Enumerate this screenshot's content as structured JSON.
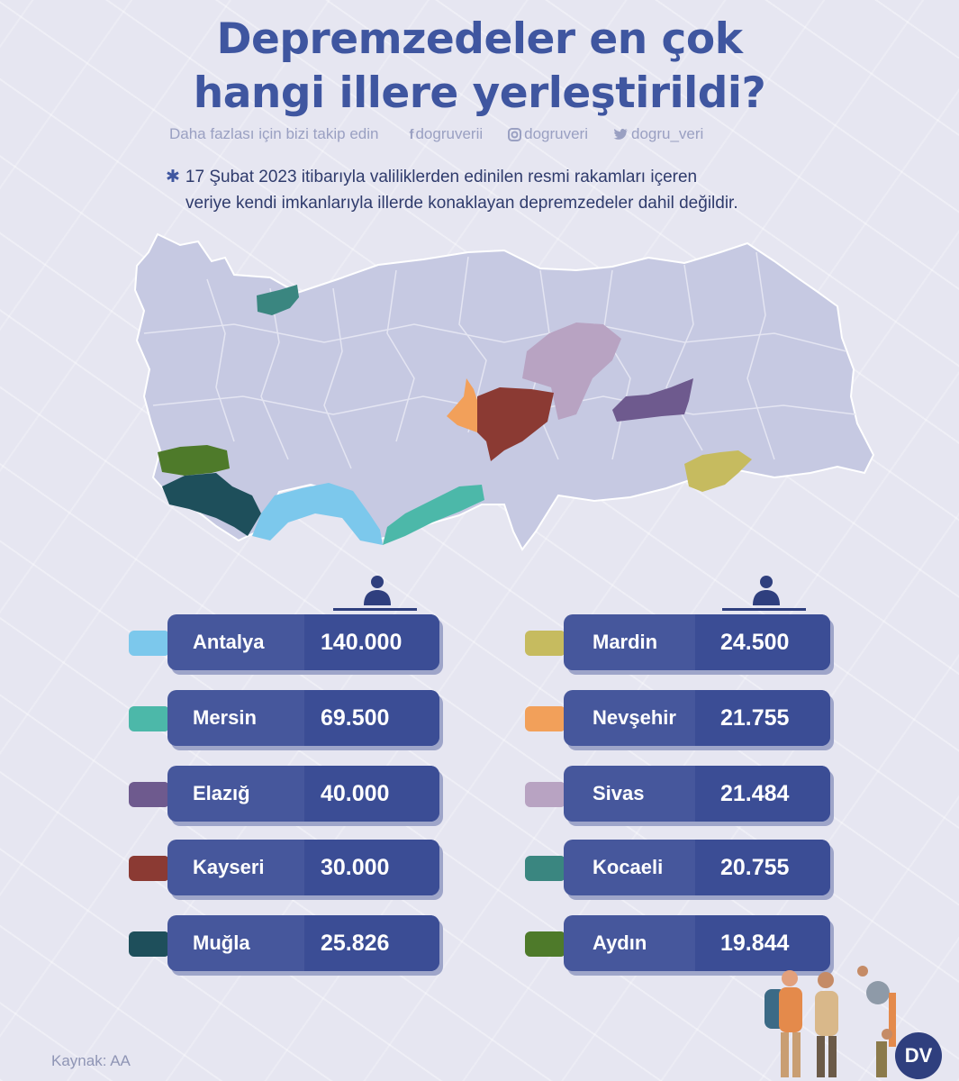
{
  "title": {
    "line1": "Depremzedeler en çok",
    "line2": "hangi illere yerleştirildi?"
  },
  "follow": {
    "text": "Daha fazlası için bizi takip edin",
    "facebook": "dogruverii",
    "instagram": "dogruveri",
    "twitter": "dogru_veri"
  },
  "note": {
    "line1": "17 Şubat 2023 itibarıyla valiliklerden edinilen resmi rakamları içeren",
    "line2": "veriye kendi imkanlarıyla illerde konaklayan depremzedeler dahil değildir."
  },
  "source": "Kaynak: AA",
  "logo": "DV",
  "chart_data": {
    "type": "table",
    "categories": [
      "Antalya",
      "Mersin",
      "Elazığ",
      "Kayseri",
      "Muğla",
      "Mardin",
      "Nevşehir",
      "Sivas",
      "Kocaeli",
      "Aydın"
    ],
    "values": [
      140000,
      69500,
      40000,
      30000,
      25826,
      24500,
      21755,
      21484,
      20755,
      19844
    ],
    "labels": [
      "140.000",
      "69.500",
      "40.000",
      "30.000",
      "25.826",
      "24.500",
      "21.755",
      "21.484",
      "20.755",
      "19.844"
    ],
    "colors": [
      "#7cc8ec",
      "#4cb8a9",
      "#6e5a8e",
      "#8b3a33",
      "#1e4f5b",
      "#c6bb5f",
      "#f2a05a",
      "#b8a3c2",
      "#3a8680",
      "#4e7a2a"
    ]
  }
}
